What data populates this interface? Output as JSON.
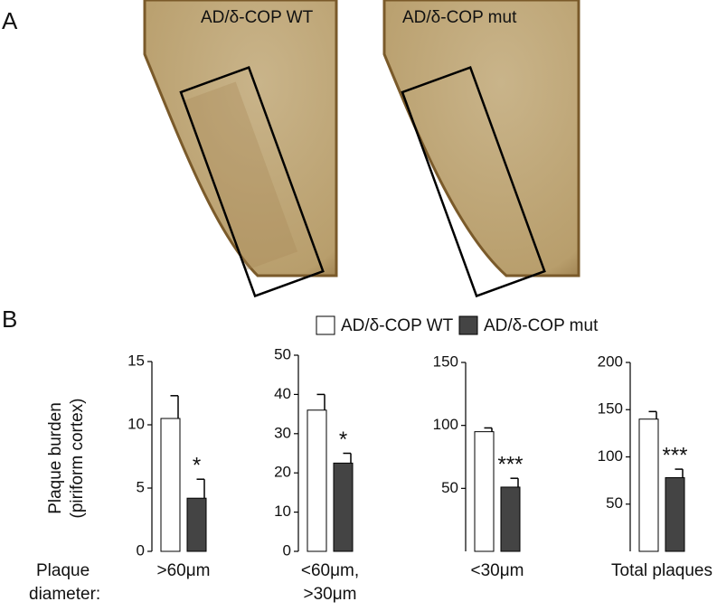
{
  "panel_labels": [
    "A",
    "B"
  ],
  "images": [
    "AD/δ-COP WT",
    "AD/δ-COP mut"
  ],
  "legend": [
    {
      "name": "AD/δ-COP WT",
      "color": "#ffffff"
    },
    {
      "name": "AD/δ-COP mut",
      "color": "#444444"
    }
  ],
  "ylabel": [
    "Plaque burden",
    "(piriform cortex)"
  ],
  "xlabel_title": [
    "Plaque",
    "diameter:"
  ],
  "chart_data": [
    {
      "type": "bar",
      "category": [
        ">60μm"
      ],
      "ylim": [
        0,
        15
      ],
      "yticks": [
        0,
        5,
        10,
        15
      ],
      "series": [
        {
          "values": [
            10.5
          ],
          "errors": [
            1.8
          ]
        },
        {
          "values": [
            4.2
          ],
          "errors": [
            1.5
          ],
          "annotation": "*"
        }
      ]
    },
    {
      "type": "bar",
      "category": [
        "<60μm,",
        ">30μm"
      ],
      "ylim": [
        0,
        50
      ],
      "yticks": [
        0,
        10,
        20,
        30,
        40,
        50
      ],
      "series": [
        {
          "values": [
            36
          ],
          "errors": [
            4
          ]
        },
        {
          "values": [
            22.5
          ],
          "errors": [
            2.5
          ],
          "annotation": "*"
        }
      ]
    },
    {
      "type": "bar",
      "category": [
        "<30μm"
      ],
      "ylim": [
        0,
        150
      ],
      "yticks": [
        50,
        100,
        150
      ],
      "series": [
        {
          "values": [
            95
          ],
          "errors": [
            3
          ]
        },
        {
          "values": [
            51
          ],
          "errors": [
            7
          ],
          "annotation": "***"
        }
      ]
    },
    {
      "type": "bar",
      "category": [
        "Total plaques"
      ],
      "ylim": [
        0,
        200
      ],
      "yticks": [
        50,
        100,
        150,
        200
      ],
      "series": [
        {
          "values": [
            140
          ],
          "errors": [
            8
          ]
        },
        {
          "values": [
            78
          ],
          "errors": [
            9
          ],
          "annotation": "***"
        }
      ]
    }
  ]
}
